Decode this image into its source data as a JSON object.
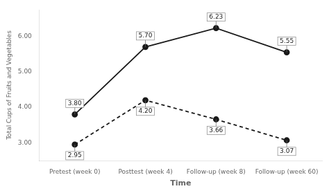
{
  "chart_data": {
    "type": "line",
    "categories": [
      "Pretest (week 0)",
      "Posttest (week 4)",
      "Follow-up (week 8)",
      "Follow-up (week 60)"
    ],
    "series": [
      {
        "color": "#1a1a1a",
        "line_style": "solid",
        "marker": "circle",
        "values": [
          3.8,
          5.7,
          6.23,
          5.55
        ],
        "value_labels": [
          "3.80",
          "5.70",
          "6.23",
          "5.55"
        ]
      },
      {
        "color": "#1a1a1a",
        "line_style": "dashed",
        "marker": "circle",
        "values": [
          2.95,
          4.2,
          3.66,
          3.07
        ],
        "value_labels": [
          "2.95",
          "4.20",
          "3.66",
          "3.07"
        ]
      }
    ],
    "xlabel": "Time",
    "ylabel": "Total Cups of Fruits and Vegetables",
    "ylim": [
      2.5,
      6.75
    ],
    "yticks": [
      {
        "value": 3,
        "label": "3.00"
      },
      {
        "value": 4,
        "label": "4.00"
      },
      {
        "value": 5,
        "label": "5.00"
      },
      {
        "value": 6,
        "label": "6.00"
      }
    ],
    "grid": false,
    "data_labels": true
  }
}
